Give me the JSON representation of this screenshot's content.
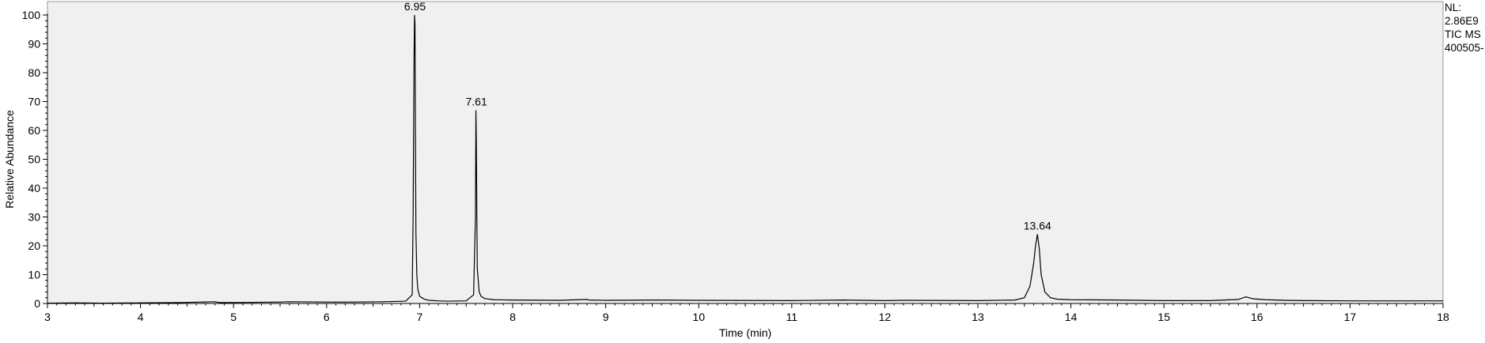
{
  "chart_data": {
    "type": "line",
    "xlabel": "Time (min)",
    "ylabel": "Relative Abundance",
    "xlim": [
      3,
      18
    ],
    "ylim": [
      0,
      100
    ],
    "x_ticks": [
      3,
      4,
      5,
      6,
      7,
      8,
      9,
      10,
      11,
      12,
      13,
      14,
      15,
      16,
      17,
      18
    ],
    "y_ticks": [
      0,
      10,
      20,
      30,
      40,
      50,
      60,
      70,
      80,
      90,
      100
    ],
    "grid": false,
    "plot_background": "#f0f0f0",
    "line_color": "#000000",
    "info_lines": [
      "NL:",
      "2.86E9",
      "TIC  MS",
      "400505-"
    ],
    "peak_labels": [
      {
        "text": "6.95",
        "x": 6.95,
        "y": 100
      },
      {
        "text": "7.61",
        "x": 7.61,
        "y": 67
      },
      {
        "text": "13.64",
        "x": 13.64,
        "y": 24
      }
    ],
    "series": [
      {
        "x": [
          3.0,
          3.3,
          3.6,
          4.0,
          4.4,
          4.8,
          4.85,
          5.2,
          5.5,
          5.6,
          6.0,
          6.3,
          6.6,
          6.85,
          6.92,
          6.93,
          6.94,
          6.945,
          6.95,
          6.955,
          6.96,
          6.97,
          6.98,
          7.0,
          7.05,
          7.1,
          7.2,
          7.3,
          7.5,
          7.58,
          7.6,
          7.605,
          7.61,
          7.615,
          7.62,
          7.64,
          7.66,
          7.7,
          7.8,
          8.0,
          8.5,
          8.8,
          8.82,
          9.0,
          9.55,
          10.0,
          11.0,
          11.55,
          12.0,
          12.2,
          13.0,
          13.4,
          13.5,
          13.56,
          13.6,
          13.62,
          13.64,
          13.66,
          13.68,
          13.72,
          13.78,
          13.85,
          14.0,
          14.5,
          15.0,
          15.5,
          15.8,
          15.88,
          15.96,
          16.1,
          16.3,
          16.5,
          17.0,
          17.5,
          18.0
        ],
        "y": [
          0.1,
          0.2,
          0.1,
          0.2,
          0.3,
          0.6,
          0.3,
          0.4,
          0.5,
          0.6,
          0.5,
          0.5,
          0.6,
          0.8,
          3.0,
          30.0,
          85.0,
          100.0,
          97.0,
          60.0,
          25.0,
          10.0,
          5.0,
          2.5,
          1.5,
          1.1,
          0.9,
          0.8,
          0.9,
          3.0,
          30.0,
          67.0,
          55.0,
          30.0,
          12.0,
          4.0,
          2.5,
          1.7,
          1.3,
          1.2,
          1.1,
          1.4,
          1.2,
          1.1,
          1.2,
          1.1,
          1.0,
          1.2,
          1.0,
          1.1,
          1.0,
          1.2,
          2.0,
          6.0,
          14.0,
          20.0,
          24.0,
          19.0,
          10.0,
          4.0,
          2.0,
          1.5,
          1.3,
          1.2,
          1.0,
          1.0,
          1.4,
          2.3,
          1.6,
          1.3,
          1.1,
          1.0,
          0.9,
          0.9,
          0.9
        ]
      }
    ]
  }
}
